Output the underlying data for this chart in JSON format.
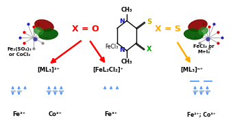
{
  "bg_color": "#ffffff",
  "arrow_color_left": "#ff0000",
  "arrow_color_right": "#ffaa00",
  "spin_color": "#5599ff",
  "text_color": "#000000",
  "s_color": "#ccaa00",
  "x_color": "#00aa00",
  "n_color": "#1111aa",
  "dark_red": "#8B0000",
  "dark_green": "#005500",
  "mid_green": "#228B22",
  "left_reagent_line1": "Fe₂(SO₄)₃",
  "left_reagent_line2": "or CoCl₂",
  "left_product1": "[ML₃]²⁺",
  "left_product2": "[FeL₂Cl₂]⁺",
  "left_arrow_label": "FeCl₃",
  "xo_label": "X = O",
  "xs_label": "X = S",
  "right_reagent_line1": "FeCl₃ or",
  "right_reagent_line2": "M+I₂",
  "right_product": "[ML₃]ⁿ⁺",
  "fe2_label": "Fe²⁺",
  "co2_label": "Co²⁺",
  "fe3_label": "Fe³⁺",
  "fe2co3_label": "Fe²⁺; Co³⁺",
  "ch3_top": "CH₃",
  "ch3_bot": "CH₃",
  "s_label": "S",
  "x_label": "X",
  "n_label": "N"
}
